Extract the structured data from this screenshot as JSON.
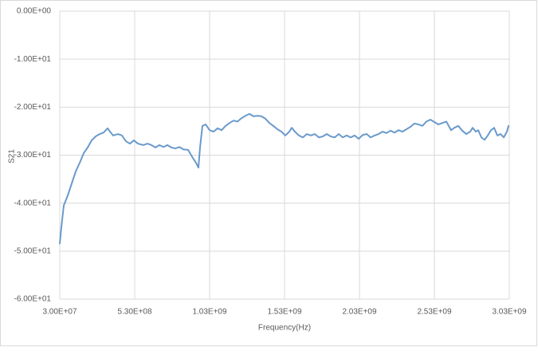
{
  "chart_data": {
    "type": "line",
    "xlabel": "Frequency(Hz)",
    "ylabel": "S21",
    "color": "#6a9acb",
    "grid": true,
    "xlim": [
      30000000,
      3030000000
    ],
    "xticks": [
      {
        "value": 30000000,
        "label": "3.00E+07"
      },
      {
        "value": 530000000,
        "label": "5.30E+08"
      },
      {
        "value": 1030000000,
        "label": "1.03E+09"
      },
      {
        "value": 1530000000,
        "label": "1.53E+09"
      },
      {
        "value": 2030000000,
        "label": "2.03E+09"
      },
      {
        "value": 2530000000,
        "label": "2.53E+09"
      },
      {
        "value": 3030000000,
        "label": "3.03E+09"
      }
    ],
    "ylim": [
      -60,
      0
    ],
    "yticks": [
      {
        "value": 0,
        "label": "0.00E+00"
      },
      {
        "value": -10,
        "label": "-1.00E+01"
      },
      {
        "value": -20,
        "label": "-2.00E+01"
      },
      {
        "value": -30,
        "label": "-3.00E+01"
      },
      {
        "value": -40,
        "label": "-4.00E+01"
      },
      {
        "value": -50,
        "label": "-5.00E+01"
      },
      {
        "value": -60,
        "label": "-6.00E+01"
      }
    ],
    "x": [
      30000000.0,
      40600000.0,
      56600000.0,
      83200000.0,
      109800000.0,
      136400000.0,
      163000000.0,
      189600000.0,
      216200000.0,
      242800000.0,
      269400000.0,
      296000000.0,
      322500000.0,
      349100000.0,
      365100000.0,
      386400000.0,
      418300000.0,
      444900000.0,
      471500000.0,
      498100000.0,
      524700000.0,
      551300000.0,
      588500000.0,
      615100000.0,
      641700000.0,
      668300000.0,
      694900000.0,
      721500000.0,
      748100000.0,
      774700000.0,
      801300000.0,
      827900000.0,
      854500000.0,
      886400000.0,
      918300000.0,
      939500000.0,
      955500000.0,
      966100000.0,
      982100000.0,
      1003400000.0,
      1030000000.0,
      1056600000.0,
      1083200000.0,
      1109800000.0,
      1136400000.0,
      1162900000.0,
      1189500000.0,
      1216100000.0,
      1242700000.0,
      1269300000.0,
      1295900000.0,
      1322500000.0,
      1349100000.0,
      1375700000.0,
      1402300000.0,
      1428900000.0,
      1455500000.0,
      1482100000.0,
      1508700000.0,
      1535300000.0,
      1561900000.0,
      1577800000.0,
      1599100000.0,
      1625700000.0,
      1652300000.0,
      1678900000.0,
      1705400000.0,
      1732000000.0,
      1758600000.0,
      1785200000.0,
      1811800000.0,
      1838400000.0,
      1865000000.0,
      1891600000.0,
      1918200000.0,
      1944800000.0,
      1971400000.0,
      1998000000.0,
      2024600000.0,
      2051200000.0,
      2077800000.0,
      2104400000.0,
      2131000000.0,
      2157600000.0,
      2184200000.0,
      2210800000.0,
      2237400000.0,
      2263900000.0,
      2290500000.0,
      2317100000.0,
      2343700000.0,
      2370300000.0,
      2396900000.0,
      2423500000.0,
      2450100000.0,
      2476700000.0,
      2503300000.0,
      2529900000.0,
      2556500000.0,
      2583100000.0,
      2609700000.0,
      2625600000.0,
      2641600000.0,
      2662900000.0,
      2689500000.0,
      2716100000.0,
      2742700000.0,
      2769300000.0,
      2785200000.0,
      2806500000.0,
      2822500000.0,
      2843800000.0,
      2865000000.0,
      2886300000.0,
      2907600000.0,
      2928900000.0,
      2950200000.0,
      2971500000.0,
      2992800000.0,
      3014000000.0,
      3024600000.0
    ],
    "values": [
      -48.4,
      -45.0,
      -40.5,
      -38.4,
      -35.9,
      -33.4,
      -31.6,
      -29.6,
      -28.4,
      -26.9,
      -26.1,
      -25.6,
      -25.3,
      -24.4,
      -25.1,
      -25.9,
      -25.6,
      -25.9,
      -27.1,
      -27.6,
      -26.9,
      -27.6,
      -27.9,
      -27.6,
      -27.9,
      -28.4,
      -27.9,
      -28.3,
      -27.9,
      -28.4,
      -28.6,
      -28.3,
      -28.8,
      -28.9,
      -30.6,
      -31.6,
      -32.6,
      -28.4,
      -23.9,
      -23.6,
      -24.8,
      -25.1,
      -24.4,
      -24.8,
      -23.9,
      -23.3,
      -22.8,
      -23.0,
      -22.3,
      -21.8,
      -21.4,
      -21.9,
      -21.8,
      -21.9,
      -22.4,
      -23.3,
      -23.9,
      -24.6,
      -25.1,
      -25.9,
      -25.1,
      -24.3,
      -25.1,
      -25.9,
      -26.3,
      -25.6,
      -25.9,
      -25.6,
      -26.3,
      -26.1,
      -25.6,
      -26.1,
      -26.3,
      -25.6,
      -26.3,
      -25.9,
      -26.3,
      -25.9,
      -26.6,
      -25.8,
      -25.6,
      -26.3,
      -25.9,
      -25.6,
      -25.1,
      -25.4,
      -24.9,
      -25.3,
      -24.8,
      -25.1,
      -24.6,
      -24.1,
      -23.4,
      -23.6,
      -23.9,
      -23.0,
      -22.6,
      -23.1,
      -23.6,
      -23.3,
      -23.0,
      -23.9,
      -24.8,
      -24.3,
      -23.9,
      -24.9,
      -25.6,
      -25.1,
      -24.3,
      -25.1,
      -24.8,
      -26.3,
      -26.8,
      -25.9,
      -24.8,
      -24.3,
      -25.9,
      -25.6,
      -26.3,
      -25.1,
      -23.9
    ]
  }
}
